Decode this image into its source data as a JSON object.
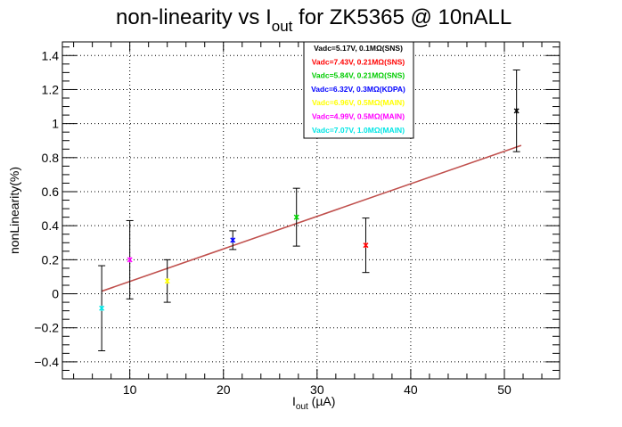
{
  "chart_data": {
    "type": "scatter",
    "title": "non-linearity vs I",
    "title_sub": "out",
    "title_rest": " for ZK5365 @ 10nALL",
    "xlabel": "I",
    "xlabel_sub": "out",
    "xlabel_rest": " (µA)",
    "ylabel": "nonLinearity(%)",
    "xlim": [
      2.8,
      55.9
    ],
    "ylim": [
      -0.5,
      1.48
    ],
    "xticks": [
      10,
      20,
      30,
      40,
      50
    ],
    "yticks": [
      -0.4,
      -0.2,
      0,
      0.2,
      0.4,
      0.6,
      0.8,
      1,
      1.2,
      1.4
    ],
    "ytick_labels": [
      "−0.4",
      "−0.2",
      "0",
      "0.2",
      "0.4",
      "0.6",
      "0.8",
      "1",
      "1.2",
      "1.4"
    ],
    "grid": true,
    "legend_position": "top-center",
    "series": [
      {
        "name": "Vadc=5.17V, 0.1MΩ(SNS)",
        "color": "#000000",
        "x": 51.3,
        "y": 1.075,
        "err": 0.24
      },
      {
        "name": "Vadc=7.43V, 0.21MΩ(SNS)",
        "color": "#ff0000",
        "x": 35.2,
        "y": 0.285,
        "err": 0.16
      },
      {
        "name": "Vadc=5.84V, 0.21MΩ(SNS)",
        "color": "#00cc00",
        "x": 27.8,
        "y": 0.45,
        "err": 0.17
      },
      {
        "name": "Vadc=6.32V, 0.3MΩ(KDPA)",
        "color": "#0000ff",
        "x": 21.0,
        "y": 0.315,
        "err": 0.055
      },
      {
        "name": "Vadc=6.96V, 0.5MΩ(MAIN)",
        "color": "#ffff00",
        "x": 14.0,
        "y": 0.075,
        "err": 0.125
      },
      {
        "name": "Vadc=4.99V, 0.5MΩ(MAIN)",
        "color": "#ff00ff",
        "x": 10.0,
        "y": 0.2,
        "err": 0.23
      },
      {
        "name": "Vadc=7.07V, 1.0MΩ(MAIN)",
        "color": "#00e5e5",
        "x": 7.0,
        "y": -0.085,
        "err": 0.25
      }
    ],
    "fit_line": {
      "color": "#c0504d",
      "x": [
        7.0,
        51.8
      ],
      "y": [
        0.015,
        0.872
      ]
    }
  }
}
